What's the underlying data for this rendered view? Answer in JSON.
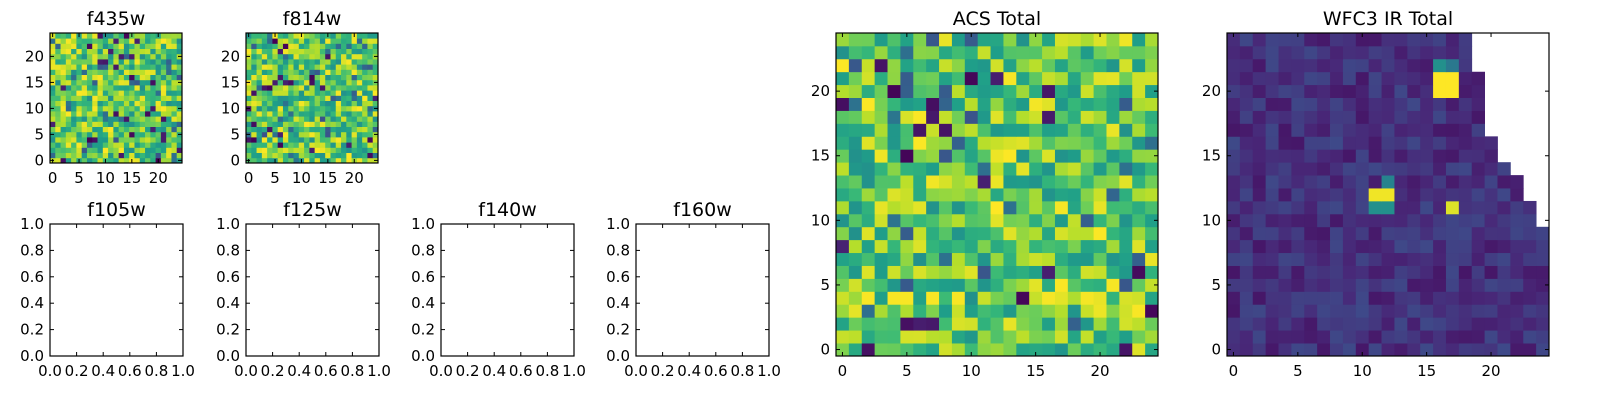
{
  "chart_data": [
    {
      "type": "heatmap",
      "title": "f435w",
      "xticks": [
        "0",
        "5",
        "10",
        "15",
        "20"
      ],
      "yticks": [
        "0",
        "5",
        "10",
        "15",
        "20"
      ],
      "xlim": [
        -0.5,
        24.5
      ],
      "ylim": [
        -0.5,
        24.5
      ],
      "grid_size": [
        25,
        25
      ],
      "colormap": "viridis",
      "value_range": [
        0,
        1
      ],
      "fill": "full"
    },
    {
      "type": "heatmap",
      "title": "f814w",
      "xticks": [
        "0",
        "5",
        "10",
        "15",
        "20"
      ],
      "yticks": [
        "0",
        "5",
        "10",
        "15",
        "20"
      ],
      "xlim": [
        -0.5,
        24.5
      ],
      "ylim": [
        -0.5,
        24.5
      ],
      "grid_size": [
        25,
        25
      ],
      "colormap": "viridis",
      "value_range": [
        0,
        1
      ],
      "fill": "full"
    },
    {
      "type": "heatmap",
      "title": "f105w",
      "xticks": [
        "0.0",
        "0.2",
        "0.4",
        "0.6",
        "0.8",
        "1.0"
      ],
      "yticks": [
        "0.0",
        "0.2",
        "0.4",
        "0.6",
        "0.8",
        "1.0"
      ],
      "xlim": [
        0,
        1
      ],
      "ylim": [
        0,
        1
      ],
      "empty": true
    },
    {
      "type": "heatmap",
      "title": "f125w",
      "xticks": [
        "0.0",
        "0.2",
        "0.4",
        "0.6",
        "0.8",
        "1.0"
      ],
      "yticks": [
        "0.0",
        "0.2",
        "0.4",
        "0.6",
        "0.8",
        "1.0"
      ],
      "xlim": [
        0,
        1
      ],
      "ylim": [
        0,
        1
      ],
      "empty": true
    },
    {
      "type": "heatmap",
      "title": "f140w",
      "xticks": [
        "0.0",
        "0.2",
        "0.4",
        "0.6",
        "0.8",
        "1.0"
      ],
      "yticks": [
        "0.0",
        "0.2",
        "0.4",
        "0.6",
        "0.8",
        "1.0"
      ],
      "xlim": [
        0,
        1
      ],
      "ylim": [
        0,
        1
      ],
      "empty": true
    },
    {
      "type": "heatmap",
      "title": "f160w",
      "xticks": [
        "0.0",
        "0.2",
        "0.4",
        "0.6",
        "0.8",
        "1.0"
      ],
      "yticks": [
        "0.0",
        "0.2",
        "0.4",
        "0.6",
        "0.8",
        "1.0"
      ],
      "xlim": [
        0,
        1
      ],
      "ylim": [
        0,
        1
      ],
      "empty": true
    },
    {
      "type": "heatmap",
      "title": "ACS Total",
      "xticks": [
        "0",
        "5",
        "10",
        "15",
        "20"
      ],
      "yticks": [
        "0",
        "5",
        "10",
        "15",
        "20"
      ],
      "xlim": [
        -0.5,
        24.5
      ],
      "ylim": [
        -0.5,
        24.5
      ],
      "grid_size": [
        25,
        25
      ],
      "colormap": "viridis",
      "value_range": [
        0,
        1
      ],
      "fill": "full"
    },
    {
      "type": "heatmap",
      "title": "WFC3 IR Total",
      "xticks": [
        "0",
        "5",
        "10",
        "15",
        "20"
      ],
      "yticks": [
        "0",
        "5",
        "10",
        "15",
        "20"
      ],
      "xlim": [
        -0.5,
        24.5
      ],
      "ylim": [
        -0.5,
        24.5
      ],
      "grid_size": [
        25,
        25
      ],
      "colormap": "viridis",
      "value_range": [
        0,
        1
      ],
      "fill": "partial",
      "hotspots": [
        {
          "x": 16,
          "y": 20,
          "w": 2,
          "h": 2,
          "value": 1.0
        },
        {
          "x": 11,
          "y": 12,
          "w": 2,
          "h": 1,
          "value": 0.98
        },
        {
          "x": 11,
          "y": 11,
          "w": 2,
          "h": 1,
          "value": 0.5
        },
        {
          "x": 12,
          "y": 13,
          "w": 1,
          "h": 1,
          "value": 0.45
        },
        {
          "x": 17,
          "y": 11,
          "w": 1,
          "h": 1,
          "value": 0.95
        },
        {
          "x": 16,
          "y": 22,
          "w": 1,
          "h": 1,
          "value": 0.5
        },
        {
          "x": 17,
          "y": 22,
          "w": 1,
          "h": 1,
          "value": 0.4
        }
      ],
      "missing_region": "upper-right"
    }
  ]
}
